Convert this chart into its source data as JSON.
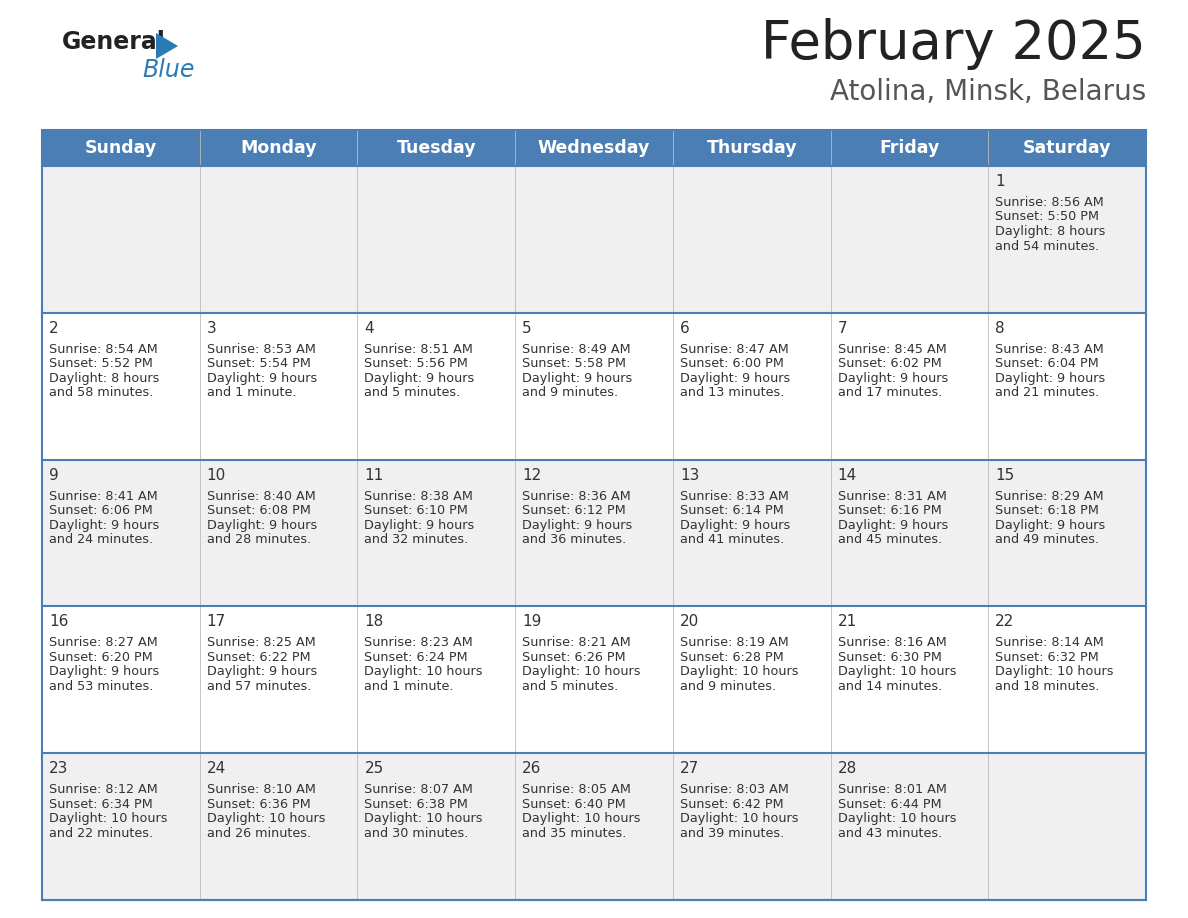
{
  "title": "February 2025",
  "subtitle": "Atolina, Minsk, Belarus",
  "days_of_week": [
    "Sunday",
    "Monday",
    "Tuesday",
    "Wednesday",
    "Thursday",
    "Friday",
    "Saturday"
  ],
  "header_bg": "#4a7eb5",
  "header_text": "#ffffff",
  "row_bg_odd": "#f0f0f0",
  "row_bg_even": "#ffffff",
  "text_color": "#333333",
  "line_color": "#4a7eb5",
  "logo_text_color": "#222222",
  "logo_blue_color": "#2a7ab5",
  "title_color": "#222222",
  "subtitle_color": "#555555",
  "calendar": [
    [
      null,
      null,
      null,
      null,
      null,
      null,
      {
        "day": "1",
        "sunrise": "8:56 AM",
        "sunset": "5:50 PM",
        "daylight": "8 hours",
        "daylight2": "and 54 minutes."
      }
    ],
    [
      {
        "day": "2",
        "sunrise": "8:54 AM",
        "sunset": "5:52 PM",
        "daylight": "8 hours",
        "daylight2": "and 58 minutes."
      },
      {
        "day": "3",
        "sunrise": "8:53 AM",
        "sunset": "5:54 PM",
        "daylight": "9 hours",
        "daylight2": "and 1 minute."
      },
      {
        "day": "4",
        "sunrise": "8:51 AM",
        "sunset": "5:56 PM",
        "daylight": "9 hours",
        "daylight2": "and 5 minutes."
      },
      {
        "day": "5",
        "sunrise": "8:49 AM",
        "sunset": "5:58 PM",
        "daylight": "9 hours",
        "daylight2": "and 9 minutes."
      },
      {
        "day": "6",
        "sunrise": "8:47 AM",
        "sunset": "6:00 PM",
        "daylight": "9 hours",
        "daylight2": "and 13 minutes."
      },
      {
        "day": "7",
        "sunrise": "8:45 AM",
        "sunset": "6:02 PM",
        "daylight": "9 hours",
        "daylight2": "and 17 minutes."
      },
      {
        "day": "8",
        "sunrise": "8:43 AM",
        "sunset": "6:04 PM",
        "daylight": "9 hours",
        "daylight2": "and 21 minutes."
      }
    ],
    [
      {
        "day": "9",
        "sunrise": "8:41 AM",
        "sunset": "6:06 PM",
        "daylight": "9 hours",
        "daylight2": "and 24 minutes."
      },
      {
        "day": "10",
        "sunrise": "8:40 AM",
        "sunset": "6:08 PM",
        "daylight": "9 hours",
        "daylight2": "and 28 minutes."
      },
      {
        "day": "11",
        "sunrise": "8:38 AM",
        "sunset": "6:10 PM",
        "daylight": "9 hours",
        "daylight2": "and 32 minutes."
      },
      {
        "day": "12",
        "sunrise": "8:36 AM",
        "sunset": "6:12 PM",
        "daylight": "9 hours",
        "daylight2": "and 36 minutes."
      },
      {
        "day": "13",
        "sunrise": "8:33 AM",
        "sunset": "6:14 PM",
        "daylight": "9 hours",
        "daylight2": "and 41 minutes."
      },
      {
        "day": "14",
        "sunrise": "8:31 AM",
        "sunset": "6:16 PM",
        "daylight": "9 hours",
        "daylight2": "and 45 minutes."
      },
      {
        "day": "15",
        "sunrise": "8:29 AM",
        "sunset": "6:18 PM",
        "daylight": "9 hours",
        "daylight2": "and 49 minutes."
      }
    ],
    [
      {
        "day": "16",
        "sunrise": "8:27 AM",
        "sunset": "6:20 PM",
        "daylight": "9 hours",
        "daylight2": "and 53 minutes."
      },
      {
        "day": "17",
        "sunrise": "8:25 AM",
        "sunset": "6:22 PM",
        "daylight": "9 hours",
        "daylight2": "and 57 minutes."
      },
      {
        "day": "18",
        "sunrise": "8:23 AM",
        "sunset": "6:24 PM",
        "daylight": "10 hours",
        "daylight2": "and 1 minute."
      },
      {
        "day": "19",
        "sunrise": "8:21 AM",
        "sunset": "6:26 PM",
        "daylight": "10 hours",
        "daylight2": "and 5 minutes."
      },
      {
        "day": "20",
        "sunrise": "8:19 AM",
        "sunset": "6:28 PM",
        "daylight": "10 hours",
        "daylight2": "and 9 minutes."
      },
      {
        "day": "21",
        "sunrise": "8:16 AM",
        "sunset": "6:30 PM",
        "daylight": "10 hours",
        "daylight2": "and 14 minutes."
      },
      {
        "day": "22",
        "sunrise": "8:14 AM",
        "sunset": "6:32 PM",
        "daylight": "10 hours",
        "daylight2": "and 18 minutes."
      }
    ],
    [
      {
        "day": "23",
        "sunrise": "8:12 AM",
        "sunset": "6:34 PM",
        "daylight": "10 hours",
        "daylight2": "and 22 minutes."
      },
      {
        "day": "24",
        "sunrise": "8:10 AM",
        "sunset": "6:36 PM",
        "daylight": "10 hours",
        "daylight2": "and 26 minutes."
      },
      {
        "day": "25",
        "sunrise": "8:07 AM",
        "sunset": "6:38 PM",
        "daylight": "10 hours",
        "daylight2": "and 30 minutes."
      },
      {
        "day": "26",
        "sunrise": "8:05 AM",
        "sunset": "6:40 PM",
        "daylight": "10 hours",
        "daylight2": "and 35 minutes."
      },
      {
        "day": "27",
        "sunrise": "8:03 AM",
        "sunset": "6:42 PM",
        "daylight": "10 hours",
        "daylight2": "and 39 minutes."
      },
      {
        "day": "28",
        "sunrise": "8:01 AM",
        "sunset": "6:44 PM",
        "daylight": "10 hours",
        "daylight2": "and 43 minutes."
      },
      null
    ]
  ]
}
